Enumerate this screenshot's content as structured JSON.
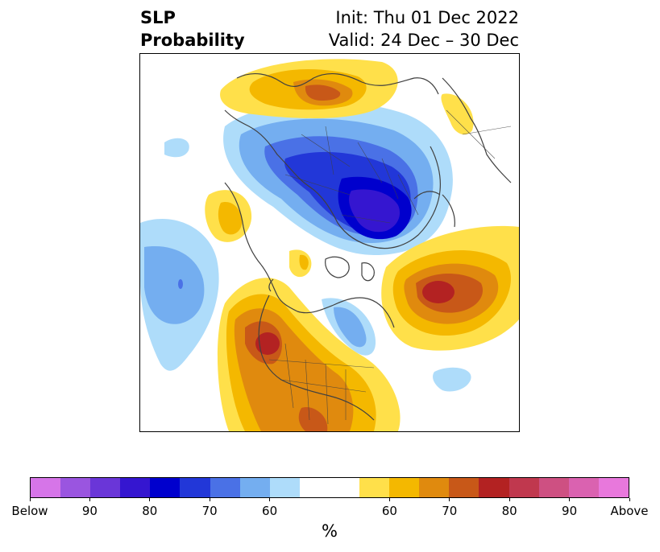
{
  "title": {
    "left_line1": "SLP",
    "left_line2": "Probability",
    "right_line1": "Init: Thu 01 Dec 2022",
    "right_line2": "Valid: 24 Dec – 30 Dec"
  },
  "colorbar": {
    "unit": "%",
    "colors": [
      "#d675e8",
      "#9a55e0",
      "#6a36d8",
      "#3516d0",
      "#0000cd",
      "#2237d8",
      "#4a71e6",
      "#74aef0",
      "#aedcfa",
      "#ffffff",
      "#ffffff",
      "#ffe04a",
      "#f4b800",
      "#e08a0e",
      "#c85818",
      "#b32222",
      "#c0384e",
      "#ce5082",
      "#da62b0",
      "#e878dc"
    ],
    "ticks": [
      "Below",
      "90",
      "80",
      "70",
      "60",
      "60",
      "70",
      "80",
      "90",
      "Above"
    ]
  },
  "colors": {
    "below_strong": "#0000cd",
    "below_weak": "#aedcfa",
    "above_weak": "#ffe04a",
    "above_strong": "#b32222",
    "coastline": "#404040"
  }
}
